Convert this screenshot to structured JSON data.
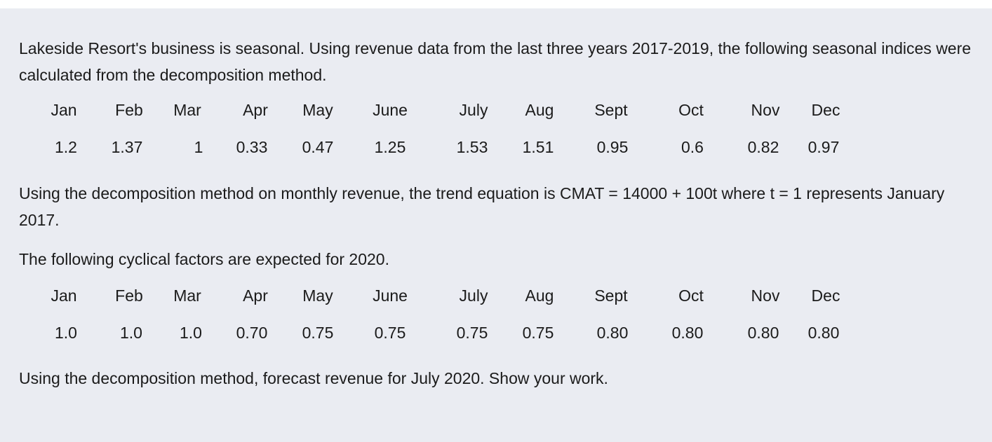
{
  "intro": "Lakeside Resort's business is seasonal. Using revenue data from the last three years 2017-2019, the following seasonal indices were calculated from the decomposition method.",
  "months": [
    "Jan",
    "Feb",
    "Mar",
    "Apr",
    "May",
    "June",
    "July",
    "Aug",
    "Sept",
    "Oct",
    "Nov",
    "Dec"
  ],
  "seasonal_indices": [
    "1.2",
    "1.37",
    "1",
    "0.33",
    "0.47",
    "1.25",
    "1.53",
    "1.51",
    "0.95",
    "0.6",
    "0.82",
    "0.97"
  ],
  "trend_text": "Using the decomposition method on monthly revenue, the trend equation is CMAT =  14000 + 100t where t = 1 represents January 2017.",
  "cyclical_intro": "The following cyclical factors are expected for 2020.",
  "cyclical_factors": [
    "1.0",
    "1.0",
    "1.0",
    "0.70",
    "0.75",
    "0.75",
    "0.75",
    "0.75",
    "0.80",
    "0.80",
    "0.80",
    "0.80"
  ],
  "question": "Using the decomposition method, forecast revenue for July 2020. Show your work."
}
